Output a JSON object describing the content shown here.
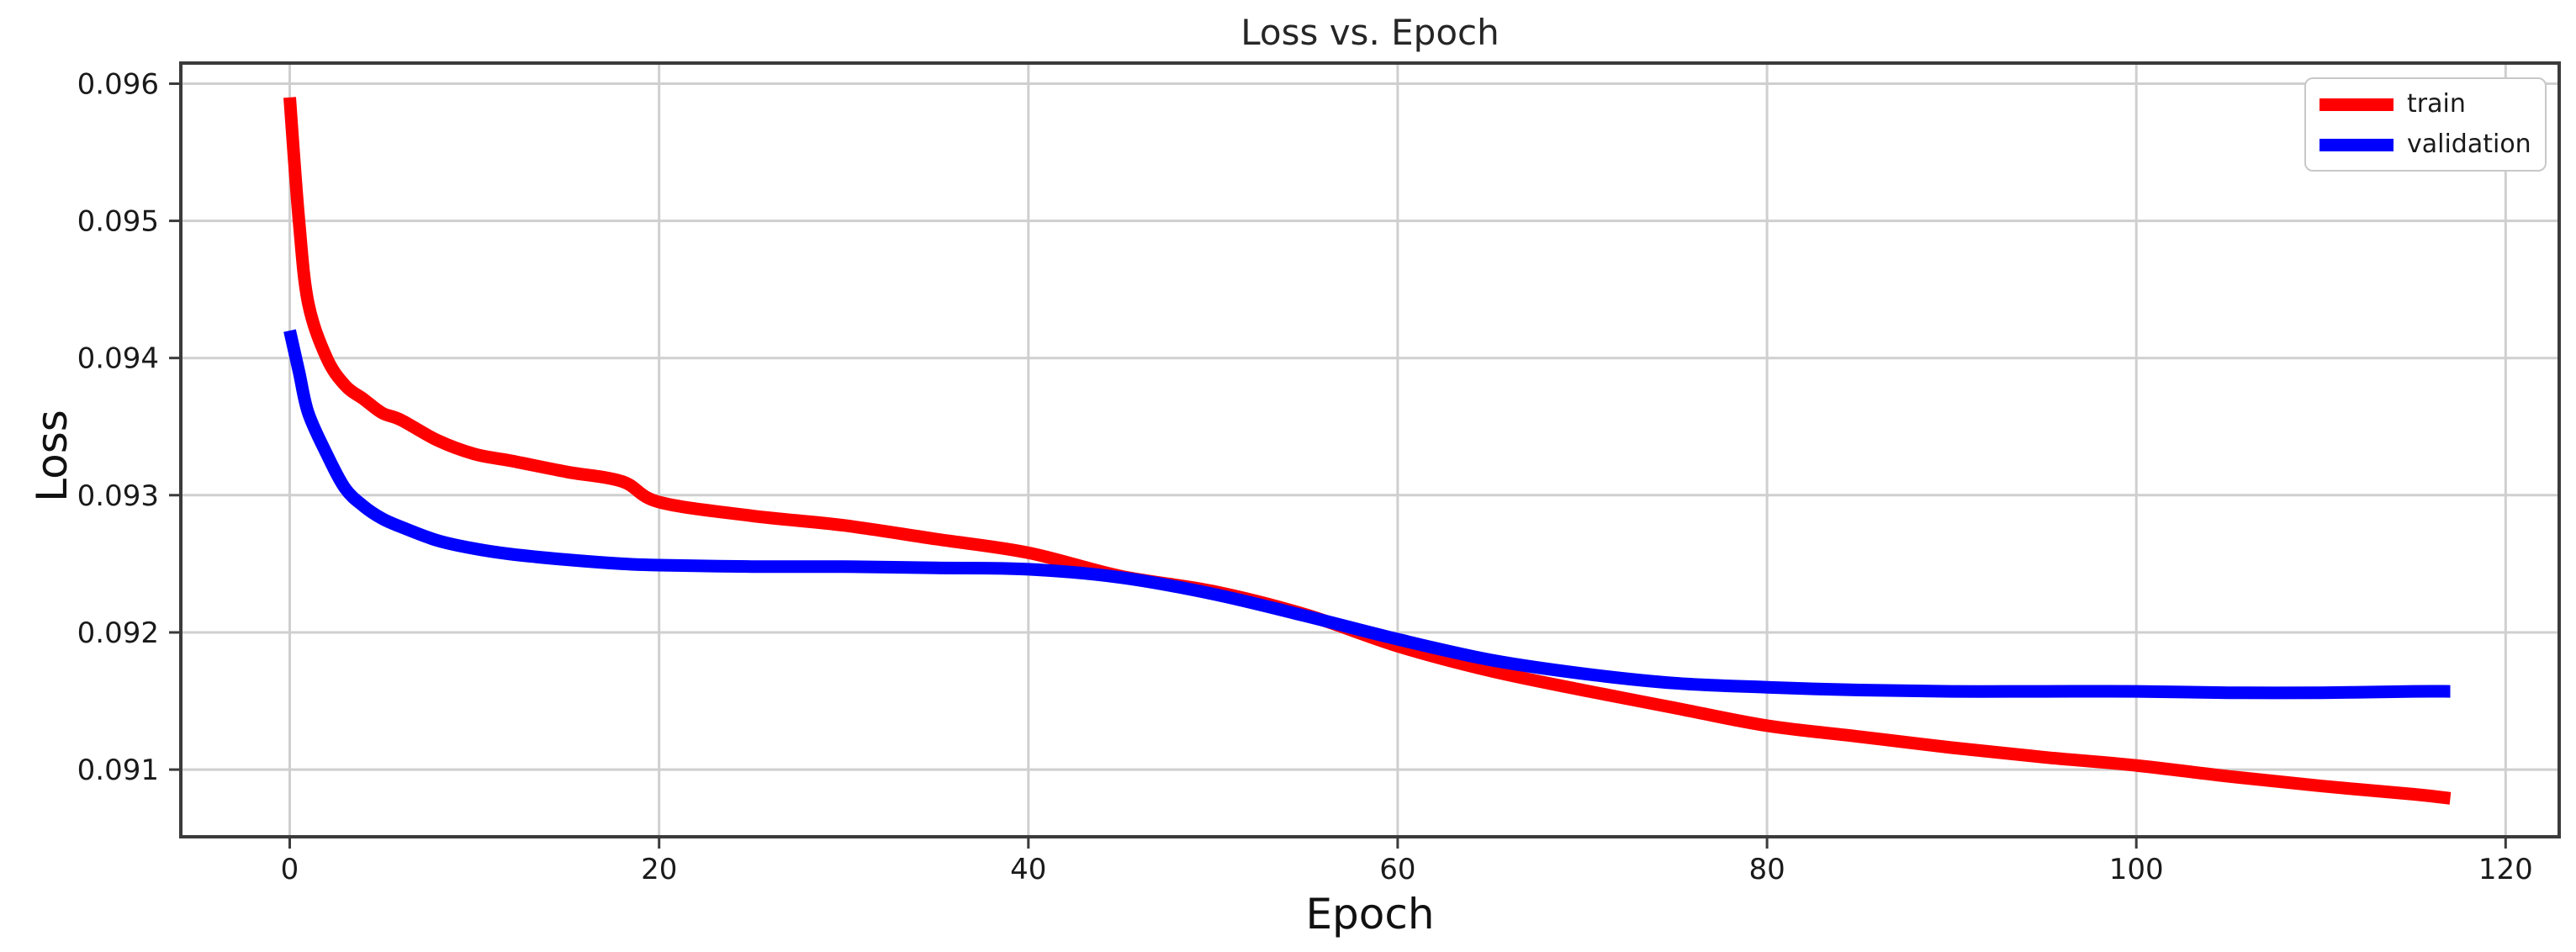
{
  "figure": {
    "title": "Loss vs. Epoch"
  },
  "chart_data": {
    "type": "line",
    "title": "Loss vs. Epoch",
    "xlabel": "Epoch",
    "ylabel": "Loss",
    "x": [
      0,
      0.5,
      1,
      2,
      3,
      4,
      5,
      6,
      8,
      10,
      12,
      15,
      18,
      20,
      25,
      30,
      35,
      40,
      45,
      50,
      55,
      60,
      65,
      70,
      75,
      80,
      85,
      90,
      95,
      100,
      105,
      110,
      115,
      117
    ],
    "series": [
      {
        "name": "train",
        "color": "#ff0000",
        "values": [
          0.0959,
          0.095,
          0.0944,
          0.094,
          0.0938,
          0.0937,
          0.0936,
          0.09355,
          0.0934,
          0.0933,
          0.09325,
          0.09317,
          0.0931,
          0.09295,
          0.09285,
          0.09278,
          0.09268,
          0.09258,
          0.09241,
          0.0923,
          0.09213,
          0.0919,
          0.09172,
          0.09158,
          0.09145,
          0.09132,
          0.09124,
          0.09116,
          0.09109,
          0.09103,
          0.09095,
          0.09088,
          0.09082,
          0.09079
        ]
      },
      {
        "name": "validation",
        "color": "#0000ff",
        "values": [
          0.0942,
          0.0939,
          0.0936,
          0.0933,
          0.09305,
          0.09292,
          0.09283,
          0.09277,
          0.09267,
          0.09261,
          0.09257,
          0.09253,
          0.0925,
          0.09249,
          0.09248,
          0.09248,
          0.09247,
          0.09246,
          0.0924,
          0.09228,
          0.09212,
          0.09195,
          0.0918,
          0.0917,
          0.09163,
          0.0916,
          0.09158,
          0.09157,
          0.09157,
          0.09157,
          0.09156,
          0.09156,
          0.09157,
          0.09157
        ]
      }
    ],
    "xlim": [
      -5.9,
      122.9
    ],
    "ylim": [
      0.09051,
      0.09615
    ],
    "xticks": [
      0,
      20,
      40,
      60,
      80,
      100,
      120
    ],
    "yticks": [
      0.091,
      0.092,
      0.093,
      0.094,
      0.095,
      0.096
    ],
    "ytick_decimals": 3,
    "grid": true,
    "legend": {
      "position": "upper right",
      "entries": [
        "train",
        "validation"
      ]
    },
    "colors": {
      "grid": "#cfcfcf",
      "spine": "#3b3b3b",
      "tick_text": "#1a1a1a",
      "background": "#ffffff"
    }
  }
}
